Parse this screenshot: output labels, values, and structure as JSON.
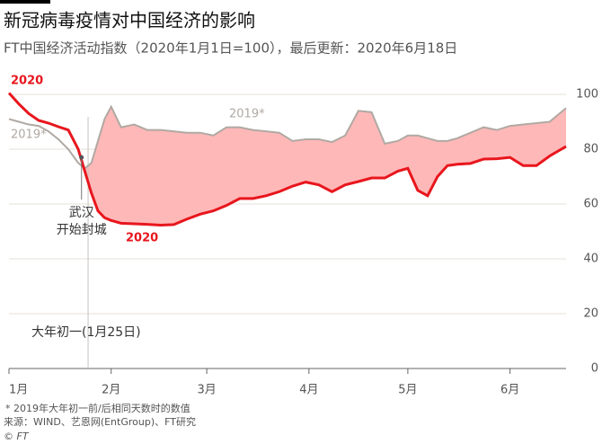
{
  "chart_data": {
    "type": "line",
    "title": "新冠病毒疫情对中国经济的影响",
    "subtitle": "FT中国经济活动指数（2020年1月1日=100），最后更新：2020年6月18日",
    "x": [
      0,
      3,
      6,
      9,
      12,
      15,
      18,
      21,
      23,
      25,
      27,
      29,
      31,
      34,
      38,
      42,
      46,
      50,
      54,
      58,
      62,
      66,
      70,
      74,
      78,
      82,
      86,
      90,
      94,
      98,
      102,
      106,
      110,
      114,
      118,
      121,
      124,
      127,
      130,
      133,
      136,
      140,
      144,
      148,
      152,
      156,
      160,
      164,
      169
    ],
    "series": [
      {
        "name": "2020",
        "color": "#e8161d",
        "values": [
          100.5,
          96.5,
          93,
          90.5,
          89.5,
          88.2,
          87,
          80,
          72,
          64,
          57.5,
          55,
          54,
          53,
          52.8,
          52.6,
          52.3,
          52.5,
          54.5,
          56.3,
          57.5,
          59.5,
          62,
          62,
          63,
          64.5,
          66.5,
          68,
          67,
          64.5,
          67,
          68.2,
          69.5,
          69.5,
          72,
          73,
          65,
          63,
          70,
          74,
          74.5,
          74.8,
          76.4,
          76.5,
          77,
          74,
          74,
          77.5,
          81
        ]
      },
      {
        "name": "2019*",
        "color": "#b0a9a3",
        "values": [
          91,
          90,
          89,
          88.5,
          86.5,
          83.6,
          80,
          75,
          73,
          75,
          83,
          91,
          95.5,
          88,
          89,
          87,
          87,
          86.5,
          86,
          86,
          85,
          88,
          88,
          87,
          86.5,
          86,
          83,
          83.6,
          83.6,
          82.6,
          85,
          94,
          93.5,
          82,
          83,
          85,
          85,
          84,
          83,
          83,
          84,
          86,
          88,
          87,
          88.5,
          89,
          89.5,
          90,
          95
        ]
      }
    ],
    "xlim": [
      0,
      169
    ],
    "xticks": [
      {
        "value": 0,
        "label": "1月"
      },
      {
        "value": 31,
        "label": "2月"
      },
      {
        "value": 60,
        "label": "3月"
      },
      {
        "value": 91,
        "label": "4月"
      },
      {
        "value": 121,
        "label": "5月"
      },
      {
        "value": 152,
        "label": "6月"
      }
    ],
    "ylim": [
      0,
      100
    ],
    "yticks": [
      0,
      20,
      40,
      60,
      80,
      100
    ],
    "grid": true,
    "fill_between_color": "#ffb8b8",
    "annotations": [
      {
        "text": "大年初一(1月25日)",
        "x": 24
      },
      {
        "text": "武汉",
        "x": 22,
        "y": 77
      },
      {
        "text": "开始封城"
      }
    ],
    "footnote": "* 2019年大年初一前/后相同天数时的数值",
    "source": "来源：WIND、艺恩网(EntGroup)、FT研究",
    "credit": "© FT"
  }
}
